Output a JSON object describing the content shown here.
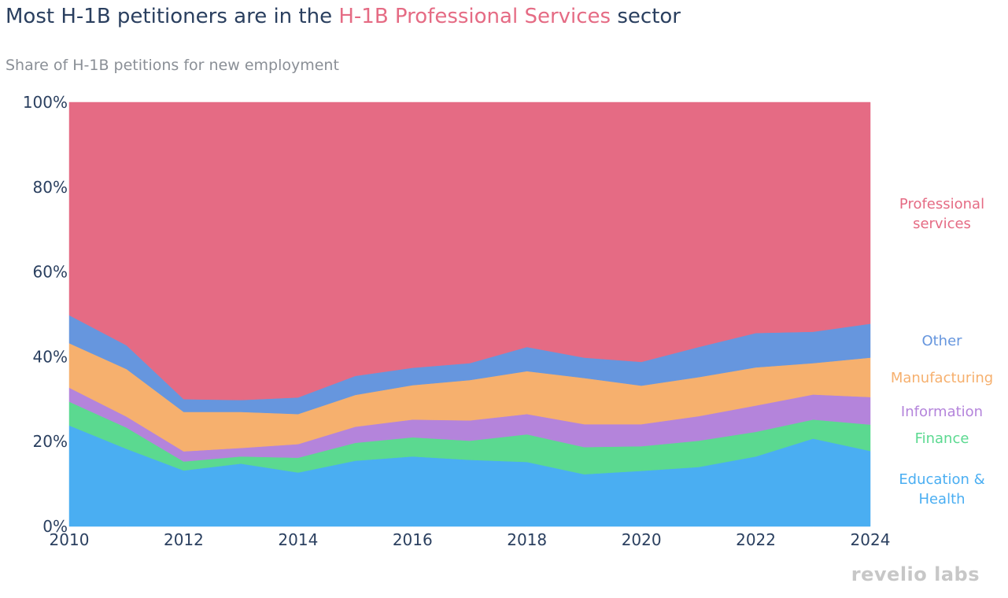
{
  "title": {
    "prefix": "Most H-1B petitioners are in the ",
    "highlight": "H-1B Professional Services",
    "suffix": " sector"
  },
  "subtitle": "Share of H-1B petitions for new employment",
  "logo": "revelio labs",
  "colors": {
    "title_highlight": "#e56b84",
    "education_health": "#4aaef2",
    "finance": "#5bd990",
    "information": "#b484db",
    "manufacturing": "#f6b06e",
    "other": "#6696de",
    "professional_services": "#e56b84"
  },
  "chart_data": {
    "type": "area",
    "stacked": true,
    "x": [
      2010,
      2011,
      2012,
      2013,
      2014,
      2015,
      2016,
      2017,
      2018,
      2019,
      2020,
      2021,
      2022,
      2023,
      2024
    ],
    "xlim": [
      2010,
      2024
    ],
    "ylim": [
      0,
      100
    ],
    "x_ticks": [
      2010,
      2012,
      2014,
      2016,
      2018,
      2020,
      2022,
      2024
    ],
    "y_ticks": [
      "0%",
      "20%",
      "40%",
      "60%",
      "80%",
      "100%"
    ],
    "grid": false,
    "series": [
      {
        "name": "Education & Health",
        "label_lines": [
          "Education &",
          "Health"
        ],
        "color": "#4aaef2",
        "values": [
          23.8,
          18.3,
          13.2,
          14.8,
          12.7,
          15.5,
          16.5,
          15.7,
          15.2,
          12.3,
          13.1,
          14.0,
          16.5,
          20.7,
          17.8
        ]
      },
      {
        "name": "Finance",
        "label_lines": [
          "Finance"
        ],
        "color": "#5bd990",
        "values": [
          5.6,
          5.0,
          2.1,
          1.7,
          3.5,
          4.2,
          4.5,
          4.5,
          6.5,
          6.4,
          5.8,
          6.2,
          5.8,
          4.5,
          6.2
        ]
      },
      {
        "name": "Information",
        "label_lines": [
          "Information"
        ],
        "color": "#b484db",
        "values": [
          3.3,
          2.6,
          2.4,
          2.0,
          3.2,
          3.8,
          4.2,
          4.8,
          4.8,
          5.4,
          5.2,
          5.8,
          6.2,
          5.9,
          6.5
        ]
      },
      {
        "name": "Manufacturing",
        "label_lines": [
          "Manufacturing"
        ],
        "color": "#f6b06e",
        "values": [
          10.5,
          11.2,
          9.3,
          8.5,
          7.1,
          7.5,
          8.1,
          9.5,
          10.1,
          10.9,
          9.1,
          9.2,
          9.0,
          7.4,
          9.3
        ]
      },
      {
        "name": "Other",
        "label_lines": [
          "Other"
        ],
        "color": "#6696de",
        "values": [
          6.6,
          5.6,
          3.0,
          2.8,
          3.9,
          4.5,
          4.1,
          4.0,
          5.7,
          4.8,
          5.6,
          7.1,
          8.1,
          7.4,
          8.0
        ]
      },
      {
        "name": "Professional services",
        "label_lines": [
          "Professional",
          "services"
        ],
        "color": "#e56b84",
        "values": [
          50.2,
          57.3,
          70.0,
          70.2,
          69.6,
          64.5,
          62.6,
          61.5,
          57.7,
          60.2,
          61.2,
          57.7,
          54.4,
          54.1,
          52.2
        ]
      }
    ]
  }
}
